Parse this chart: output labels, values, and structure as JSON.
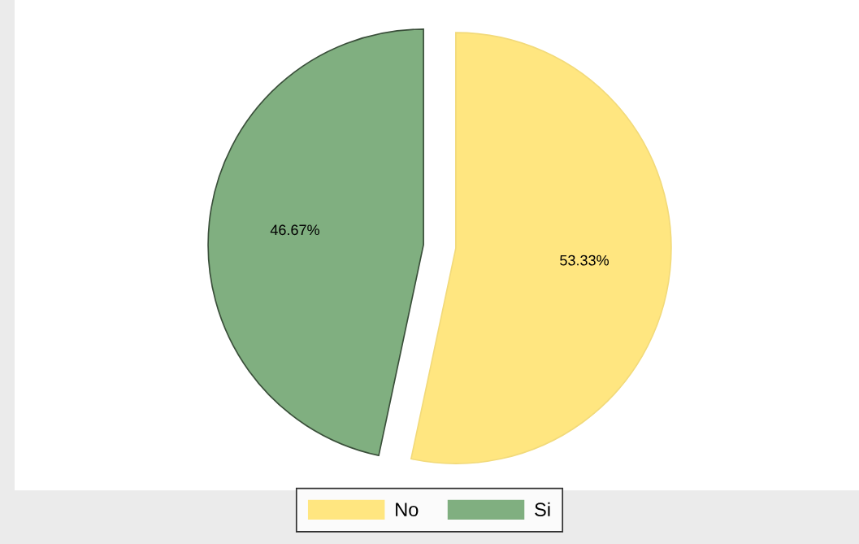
{
  "chart_data": {
    "type": "pie",
    "categories": [
      "No",
      "Si"
    ],
    "values": [
      53.33,
      46.67
    ],
    "colors": [
      "#ffe680",
      "#80af80"
    ],
    "value_labels": [
      "53.33%",
      "46.67%"
    ],
    "legend": "bottom"
  }
}
